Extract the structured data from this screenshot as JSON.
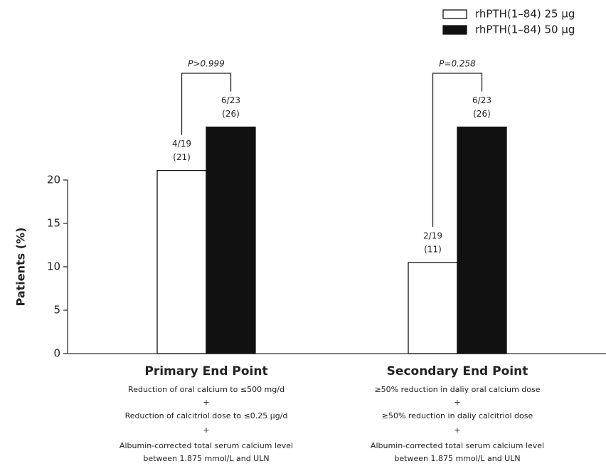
{
  "chart_data": {
    "type": "bar",
    "y_label": "Patients (%)",
    "categories": [
      "Primary End Point",
      "Secondary End Point"
    ],
    "descriptions": [
      [
        "Reduction of oral calcium to ≤500 mg/d",
        "+",
        "Reduction of calcitriol dose to ≤0.25 μg/d",
        "+",
        "Albumin-corrected total serum calcium level",
        "between 1.875 mmol/L and ULN"
      ],
      [
        "≥50% reduction in daliy oral calcium dose",
        "+",
        "≥50% reduction in daliy calcitriol dose",
        "+",
        "Albumin-corrected total serum calcium level",
        "between 1.875 mmol/L and ULN"
      ]
    ],
    "series": [
      {
        "name": "rhPTH(1–84) 25 μg",
        "color": "#ffffff",
        "values": [
          21.1,
          10.5
        ],
        "fractions": [
          "4/19",
          "2/19"
        ],
        "value_labels": [
          "(21)",
          "(11)"
        ]
      },
      {
        "name": "rhPTH(1–84) 50 μg",
        "color": "#111111",
        "values": [
          26.1,
          26.1
        ],
        "fractions": [
          "6/23",
          "6/23"
        ],
        "value_labels": [
          "(26)",
          "(26)"
        ]
      }
    ],
    "p_values": [
      "P>0.999",
      "P=0.258"
    ],
    "ylim": [
      0,
      20
    ],
    "yticks": [
      0,
      5,
      10,
      15,
      20
    ],
    "legend": "top-right"
  }
}
